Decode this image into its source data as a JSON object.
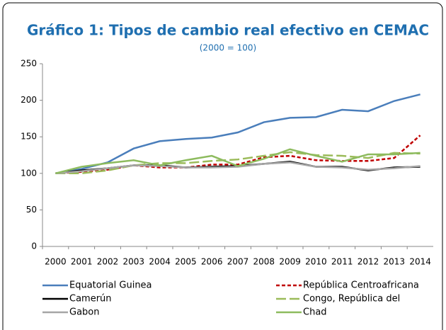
{
  "chart_data": {
    "type": "line",
    "title": "Gráfico 1: Tipos de cambio real efectivo en CEMAC",
    "subtitle": "(2000 = 100)",
    "categories": [
      "2000",
      "2001",
      "2002",
      "2003",
      "2004",
      "2005",
      "2006",
      "2007",
      "2008",
      "2009",
      "2010",
      "2011",
      "2012",
      "2013",
      "2014"
    ],
    "ylim": [
      0,
      250
    ],
    "yticks": [
      0,
      50,
      100,
      150,
      200,
      250
    ],
    "grid": false,
    "series": [
      {
        "name": "Equatorial Guinea",
        "color": "#4a7ebb",
        "line_style": "solid",
        "values": [
          100,
          106,
          115,
          134,
          144,
          147,
          149,
          156,
          170,
          176,
          177,
          187,
          185,
          199,
          208
        ]
      },
      {
        "name": "República Centroafricana",
        "color": "#c00000",
        "line_style": "dashed",
        "values": [
          100,
          102,
          105,
          111,
          108,
          108,
          112,
          112,
          122,
          124,
          118,
          117,
          117,
          121,
          152
        ]
      },
      {
        "name": "Camerún",
        "color": "#000000",
        "line_style": "solid",
        "values": [
          100,
          104,
          107,
          111,
          111,
          108,
          109,
          110,
          113,
          116,
          109,
          109,
          104,
          108,
          109
        ]
      },
      {
        "name": "Congo, República del",
        "color": "#9bbb59",
        "line_style": "long-dash",
        "values": [
          100,
          100,
          104,
          111,
          114,
          114,
          117,
          119,
          124,
          129,
          125,
          124,
          121,
          128,
          127
        ]
      },
      {
        "name": "Gabon",
        "color": "#a6a6a6",
        "line_style": "solid",
        "values": [
          100,
          103,
          107,
          111,
          110,
          108,
          108,
          109,
          113,
          115,
          109,
          108,
          105,
          107,
          110
        ]
      },
      {
        "name": "Chad",
        "color": "#8dbb5e",
        "line_style": "solid",
        "values": [
          100,
          109,
          114,
          118,
          111,
          118,
          124,
          110,
          120,
          133,
          124,
          116,
          126,
          126,
          128
        ]
      }
    ]
  }
}
